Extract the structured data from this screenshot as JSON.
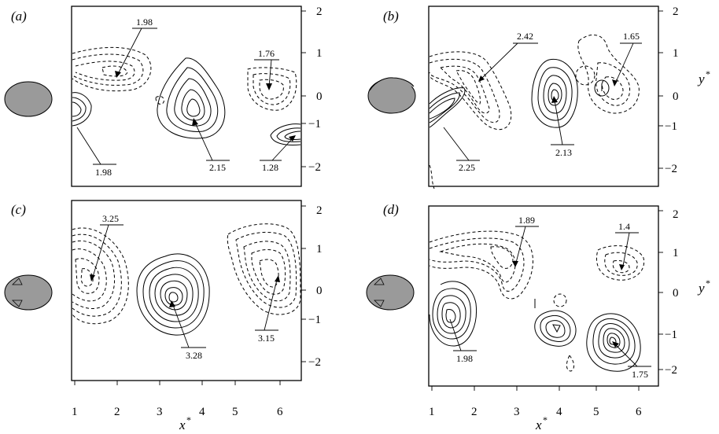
{
  "figure": {
    "panels": [
      {
        "id": "a",
        "label": "(a)",
        "annotations": [
          "1.98",
          "1.76",
          "2.15",
          "1.98",
          "1.28"
        ]
      },
      {
        "id": "b",
        "label": "(b)",
        "annotations": [
          "2.42",
          "1.65",
          "2.25",
          "2.13"
        ]
      },
      {
        "id": "c",
        "label": "(c)",
        "annotations": [
          "3.25",
          "3.28",
          "3.15"
        ]
      },
      {
        "id": "d",
        "label": "(d)",
        "annotations": [
          "1.89",
          "1.4",
          "1.98",
          "1.75"
        ]
      }
    ],
    "x_ticks": [
      "1",
      "2",
      "3",
      "4",
      "5",
      "6"
    ],
    "y_ticks": [
      "2",
      "1",
      "0",
      "−1",
      "−2"
    ],
    "x_label": "x",
    "y_label": "y",
    "star": "*"
  }
}
